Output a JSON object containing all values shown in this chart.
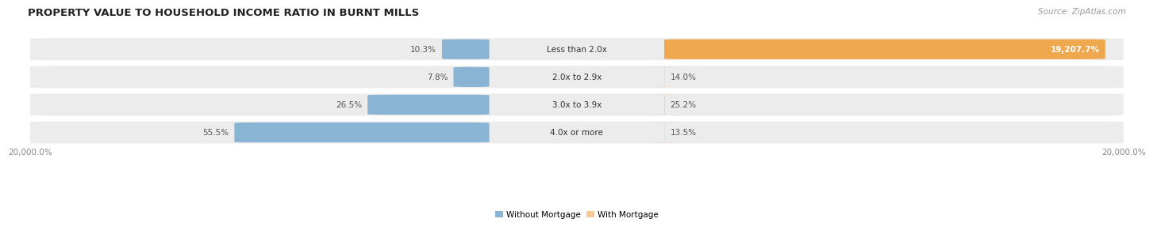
{
  "title": "PROPERTY VALUE TO HOUSEHOLD INCOME RATIO IN BURNT MILLS",
  "source": "Source: ZipAtlas.com",
  "categories": [
    "Less than 2.0x",
    "2.0x to 2.9x",
    "3.0x to 3.9x",
    "4.0x or more"
  ],
  "without_mortgage": [
    10.3,
    7.8,
    26.5,
    55.5
  ],
  "with_mortgage": [
    19207.7,
    14.0,
    25.2,
    13.5
  ],
  "without_max": 100,
  "with_max": 20000,
  "color_without": "#8ab4d4",
  "color_with_large": "#f0a84e",
  "color_with_small": "#f5c99a",
  "bg_row": "#ececec",
  "bg_figure": "#ffffff",
  "title_fontsize": 9.5,
  "source_fontsize": 7.5,
  "label_fontsize": 7.5,
  "category_fontsize": 7.5,
  "value_color_inside": "#ffffff",
  "value_color_outside": "#555555",
  "x_label_left": "20,000.0%",
  "x_label_right": "20,000.0%"
}
